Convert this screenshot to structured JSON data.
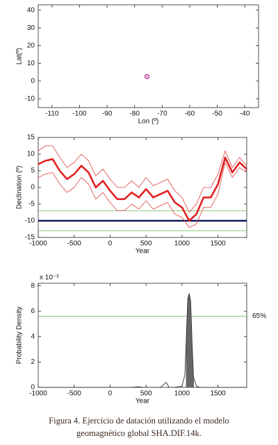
{
  "chart_data": [
    {
      "type": "scatter",
      "xlabel": "Lon (º)",
      "ylabel": "Lat(º)",
      "xlim": [
        -115,
        -35
      ],
      "xticks": [
        -110,
        -100,
        -90,
        -80,
        -70,
        -60,
        -50,
        -40
      ],
      "ylim": [
        -15,
        43
      ],
      "yticks": [
        -10,
        0,
        10,
        20,
        30,
        40
      ],
      "x": [
        -75.5
      ],
      "values": [
        2.5
      ],
      "color": "#b0208a"
    },
    {
      "type": "line",
      "xlabel": "Year",
      "ylabel": "Declination (º)",
      "xlim": [
        -1000,
        1900
      ],
      "xticks": [
        -1000,
        -500,
        0,
        500,
        1000,
        1500
      ],
      "ylim": [
        -15,
        15
      ],
      "yticks": [
        -15,
        -10,
        -5,
        0,
        5,
        10,
        15
      ],
      "x": [
        -1000,
        -900,
        -800,
        -700,
        -600,
        -500,
        -400,
        -300,
        -200,
        -100,
        0,
        100,
        200,
        300,
        400,
        500,
        600,
        700,
        800,
        900,
        1000,
        1100,
        1200,
        1300,
        1400,
        1500,
        1600,
        1700,
        1800,
        1900
      ],
      "series": [
        {
          "color": "#e02020",
          "values": [
            7,
            8,
            8.5,
            5,
            2.5,
            4,
            6.5,
            4.5,
            0,
            2,
            -1,
            -3.5,
            -3.5,
            -1.5,
            -3,
            -0.5,
            -3,
            -2,
            -1,
            -4.5,
            -6,
            -10,
            -8,
            -3,
            -3,
            1,
            9,
            4.5,
            7.5,
            5.5
          ]
        },
        {
          "color": "#e04040",
          "values": [
            11,
            12.5,
            12.5,
            9,
            6,
            7.5,
            10,
            8,
            3.5,
            5.5,
            2.5,
            0,
            0,
            2,
            0,
            3,
            0.5,
            1.5,
            2.5,
            -1,
            -3,
            -7.5,
            -5,
            0,
            0,
            4,
            11,
            6,
            9,
            6.5
          ]
        },
        {
          "color": "#e04040",
          "values": [
            3,
            4,
            4.5,
            1,
            -1.5,
            0,
            3,
            1,
            -3.5,
            -1.5,
            -4.5,
            -7,
            -7,
            -5,
            -6.5,
            -4,
            -6.5,
            -5.5,
            -4.5,
            -8,
            -9,
            -12,
            -11,
            -6,
            -6,
            -2,
            7.5,
            3,
            6,
            4.5
          ]
        }
      ],
      "reference_lines": [
        {
          "value": -7,
          "color": "#8cc97a"
        },
        {
          "value": -10,
          "color": "#0b1a5e",
          "style": "bold"
        },
        {
          "value": -13,
          "color": "#8cc97a"
        }
      ]
    },
    {
      "type": "area",
      "xlabel": "Year",
      "ylabel": "Probability Density",
      "y_multiplier": "x 10⁻³",
      "xlim": [
        -1000,
        1900
      ],
      "xticks": [
        -1000,
        -500,
        0,
        500,
        1000,
        1500
      ],
      "ylim": [
        0,
        8.2
      ],
      "yticks": [
        0,
        2,
        4,
        6,
        8
      ],
      "x": [
        -1000,
        300,
        400,
        450,
        700,
        780,
        820,
        900,
        1000,
        1040,
        1060,
        1080,
        1100,
        1120,
        1140,
        1160,
        1200,
        1250,
        1900
      ],
      "values": [
        0,
        0,
        0.05,
        0,
        0,
        0.4,
        0,
        0,
        0.1,
        1,
        4,
        7,
        7.4,
        6.8,
        3.5,
        0.8,
        0.1,
        0,
        0
      ],
      "color": "#333333",
      "fill": "#666666",
      "shaded_range": [
        1055,
        1165
      ],
      "reference_lines": [
        {
          "value": 5.6,
          "color": "#8cc97a",
          "label": "65%"
        }
      ]
    }
  ],
  "caption": [
    "Figura 4. Ejercicio de datación utilizando el modelo",
    "geomagnético global SHA.DIF.14k."
  ]
}
